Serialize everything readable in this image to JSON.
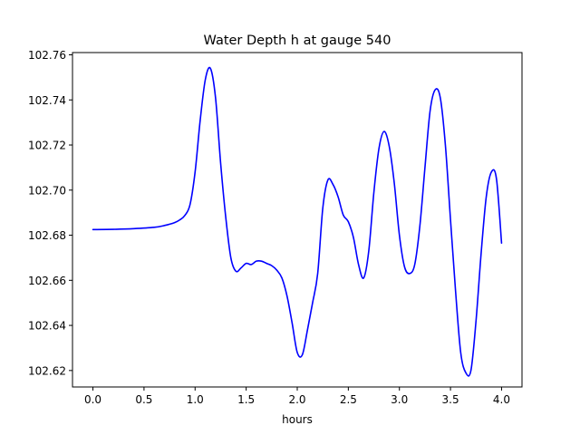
{
  "chart_data": {
    "type": "line",
    "title": "Water Depth h at gauge 540",
    "xlabel": "hours",
    "ylabel": "",
    "xlim": [
      -0.2,
      4.2
    ],
    "ylim": [
      102.6127,
      102.761
    ],
    "grid": false,
    "legend": "none",
    "x_ticks": [
      0.0,
      0.5,
      1.0,
      1.5,
      2.0,
      2.5,
      3.0,
      3.5,
      4.0
    ],
    "x_tick_labels": [
      "0.0",
      "0.5",
      "1.0",
      "1.5",
      "2.0",
      "2.5",
      "3.0",
      "3.5",
      "4.0"
    ],
    "y_ticks": [
      102.62,
      102.64,
      102.66,
      102.68,
      102.7,
      102.72,
      102.74,
      102.76
    ],
    "y_tick_labels": [
      "102.62",
      "102.64",
      "102.66",
      "102.68",
      "102.70",
      "102.72",
      "102.74",
      "102.76"
    ],
    "series": [
      {
        "color": "#0000ff",
        "x": [
          0.0,
          0.2,
          0.4,
          0.6,
          0.7,
          0.8,
          0.85,
          0.9,
          0.95,
          1.0,
          1.05,
          1.1,
          1.15,
          1.2,
          1.25,
          1.3,
          1.35,
          1.4,
          1.45,
          1.5,
          1.55,
          1.6,
          1.65,
          1.7,
          1.75,
          1.8,
          1.85,
          1.9,
          1.95,
          2.0,
          2.05,
          2.1,
          2.15,
          2.2,
          2.25,
          2.3,
          2.35,
          2.4,
          2.45,
          2.5,
          2.55,
          2.6,
          2.65,
          2.7,
          2.75,
          2.8,
          2.85,
          2.9,
          2.95,
          3.0,
          3.05,
          3.1,
          3.15,
          3.2,
          3.25,
          3.3,
          3.35,
          3.4,
          3.45,
          3.5,
          3.55,
          3.6,
          3.65,
          3.7,
          3.75,
          3.8,
          3.85,
          3.9,
          3.95,
          4.0
        ],
        "values": [
          102.6825,
          102.6826,
          102.6829,
          102.6835,
          102.6843,
          102.6856,
          102.6868,
          102.6888,
          102.6935,
          102.708,
          102.731,
          102.749,
          102.754,
          102.741,
          102.712,
          102.688,
          102.67,
          102.664,
          102.6655,
          102.6675,
          102.667,
          102.6685,
          102.6685,
          102.6675,
          102.6665,
          102.6645,
          102.661,
          102.653,
          102.641,
          102.628,
          102.627,
          102.638,
          102.65,
          102.663,
          102.692,
          102.7045,
          102.7025,
          102.697,
          102.689,
          102.686,
          102.679,
          102.667,
          102.661,
          102.673,
          102.699,
          102.7185,
          102.726,
          102.7195,
          102.703,
          102.68,
          102.666,
          102.663,
          102.667,
          102.684,
          102.71,
          102.735,
          102.7445,
          102.741,
          102.72,
          102.687,
          102.655,
          102.628,
          102.619,
          102.62,
          102.642,
          102.672,
          102.697,
          102.708,
          102.705,
          102.6765
        ]
      }
    ]
  }
}
